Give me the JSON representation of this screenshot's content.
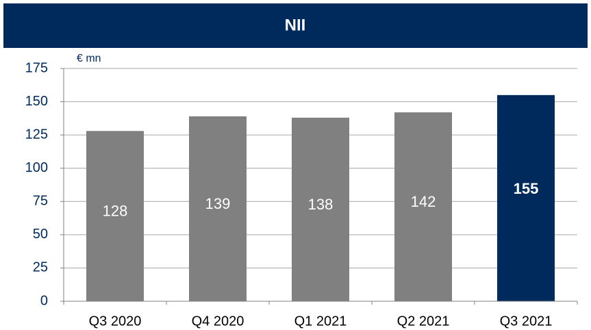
{
  "chart_data": {
    "type": "bar",
    "title": "NII",
    "y_axis_label": "€ mn",
    "categories": [
      "Q3 2020",
      "Q4 2020",
      "Q1 2021",
      "Q2 2021",
      "Q3 2021"
    ],
    "values": [
      128,
      139,
      138,
      142,
      155
    ],
    "colors": [
      "#808080",
      "#808080",
      "#808080",
      "#808080",
      "#002a5c"
    ],
    "highlight_index": 4,
    "ylim": [
      0,
      175
    ],
    "yticks": [
      0,
      25,
      50,
      75,
      100,
      125,
      150,
      175
    ],
    "grid": true
  }
}
